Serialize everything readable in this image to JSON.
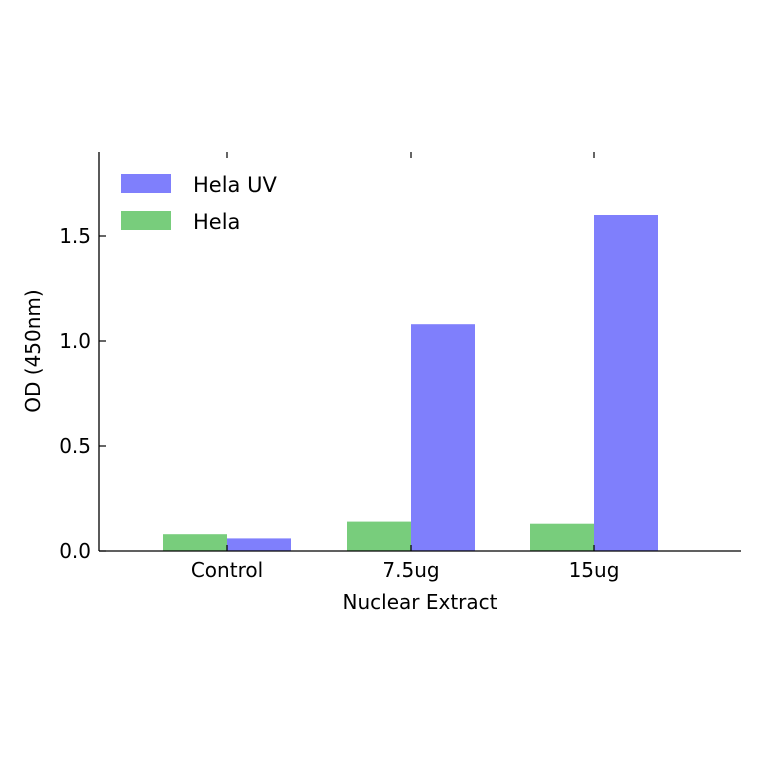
{
  "chart_data": {
    "type": "bar",
    "xlabel": "Nuclear Extract",
    "ylabel": "OD (450nm)",
    "categories": [
      "Control",
      "7.5ug",
      "15ug"
    ],
    "series": [
      {
        "name": "Hela",
        "color": "#78cd7c",
        "values": [
          0.08,
          0.14,
          0.13
        ]
      },
      {
        "name": "Hela UV",
        "color": "#7f7ffc",
        "values": [
          0.06,
          1.08,
          1.6
        ]
      }
    ],
    "legend_order": [
      "Hela UV",
      "Hela"
    ],
    "legend_position": "top-left",
    "ylim": [
      0,
      1.9
    ],
    "yticks": [
      "0.0",
      "0.5",
      "1.0",
      "1.5"
    ],
    "grid": false
  }
}
